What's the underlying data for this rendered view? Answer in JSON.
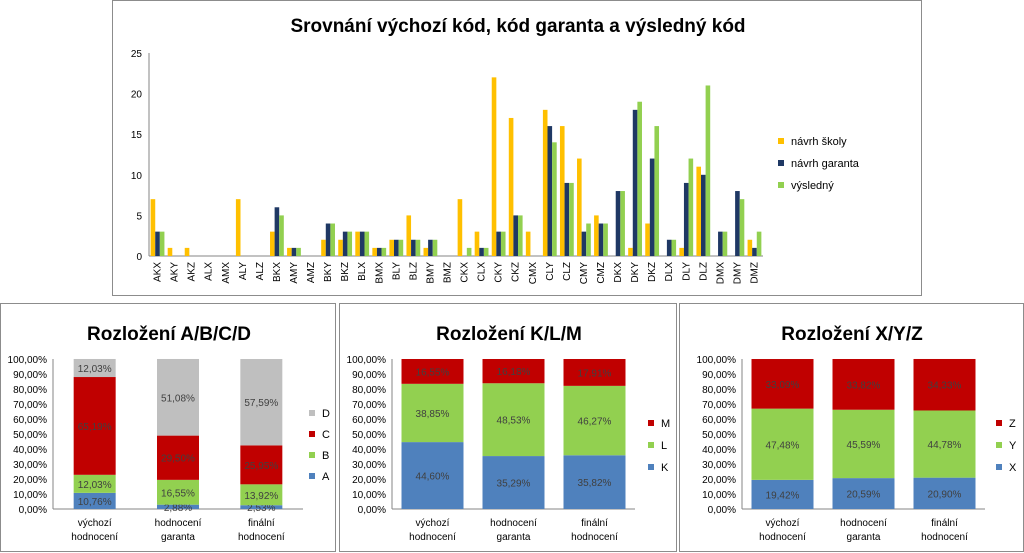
{
  "colors": {
    "navrh_skoly": "#FFC000",
    "navrh_garanta": "#1F3864",
    "vysledny": "#92D050",
    "A": "#4F81BD",
    "B": "#92D050",
    "C": "#C00000",
    "D": "#BFBFBF",
    "K": "#4F81BD",
    "L": "#92D050",
    "M": "#C00000",
    "X": "#4F81BD",
    "Y": "#92D050",
    "Z": "#C00000",
    "grid": "#d9d9d9",
    "axis": "#868686"
  },
  "chart_data": [
    {
      "type": "bar",
      "title": "Srovnání výchozí kód, kód garanta a výsledný kód",
      "xlabel": "",
      "ylabel": "",
      "ylim": [
        0,
        25
      ],
      "yticks": [
        "0",
        "5",
        "10",
        "15",
        "20",
        "25"
      ],
      "grid": false,
      "legend_position": "right",
      "categories": [
        "AKX",
        "AKY",
        "AKZ",
        "ALX",
        "AMX",
        "ALY",
        "ALZ",
        "BKX",
        "AMY",
        "AMZ",
        "BKY",
        "BKZ",
        "BLX",
        "BMX",
        "BLY",
        "BLZ",
        "BMY",
        "BMZ",
        "CKX",
        "CLX",
        "CKY",
        "CKZ",
        "CMX",
        "CLY",
        "CLZ",
        "CMY",
        "CMZ",
        "DKX",
        "DKY",
        "DKZ",
        "DLX",
        "DLY",
        "DLZ",
        "DMX",
        "DMY",
        "DMZ"
      ],
      "series": [
        {
          "name": "návrh školy",
          "color_key": "navrh_skoly",
          "values": [
            7,
            1,
            1,
            0,
            0,
            7,
            0,
            3,
            1,
            0,
            2,
            2,
            3,
            1,
            2,
            5,
            1,
            0,
            7,
            3,
            22,
            17,
            3,
            18,
            16,
            12,
            5,
            0,
            1,
            4,
            0,
            1,
            11,
            0,
            0,
            2
          ]
        },
        {
          "name": "návrh garanta",
          "color_key": "navrh_garanta",
          "values": [
            3,
            0,
            0,
            0,
            0,
            0,
            0,
            6,
            1,
            0,
            4,
            3,
            3,
            1,
            2,
            2,
            2,
            0,
            0,
            1,
            3,
            5,
            0,
            16,
            9,
            3,
            4,
            8,
            18,
            12,
            2,
            9,
            10,
            3,
            8,
            1
          ]
        },
        {
          "name": "výsledný",
          "color_key": "vysledny",
          "values": [
            3,
            0,
            0,
            0,
            0,
            0,
            0,
            5,
            1,
            0,
            4,
            3,
            3,
            1,
            2,
            2,
            2,
            0,
            1,
            1,
            3,
            5,
            0,
            14,
            9,
            4,
            4,
            8,
            19,
            16,
            2,
            12,
            21,
            3,
            7,
            3
          ]
        }
      ]
    },
    {
      "type": "bar",
      "stacked": "percent",
      "title": "Rozložení A/B/C/D",
      "xlabel": "",
      "ylabel": "",
      "ylim": [
        0,
        100
      ],
      "yticks": [
        "0,00%",
        "10,00%",
        "20,00%",
        "30,00%",
        "40,00%",
        "50,00%",
        "60,00%",
        "70,00%",
        "80,00%",
        "90,00%",
        "100,00%"
      ],
      "legend_position": "right",
      "categories": [
        [
          "výchozí",
          "hodnocení"
        ],
        [
          "hodnocení",
          "garanta"
        ],
        [
          "finální",
          "hodnocení"
        ]
      ],
      "series": [
        {
          "name": "A",
          "color_key": "A",
          "values": [
            10.76,
            2.88,
            2.53
          ],
          "labels": [
            "10,76%",
            "2,88%",
            "2,53%"
          ]
        },
        {
          "name": "B",
          "color_key": "B",
          "values": [
            12.03,
            16.55,
            13.92
          ],
          "labels": [
            "12,03%",
            "16,55%",
            "13,92%"
          ]
        },
        {
          "name": "C",
          "color_key": "C",
          "values": [
            65.19,
            29.5,
            25.95
          ],
          "labels": [
            "65,19%",
            "29,50%",
            "25,95%"
          ]
        },
        {
          "name": "D",
          "color_key": "D",
          "values": [
            12.03,
            51.08,
            57.59
          ],
          "labels": [
            "12,03%",
            "51,08%",
            "57,59%"
          ]
        }
      ]
    },
    {
      "type": "bar",
      "stacked": "percent",
      "title": "Rozložení K/L/M",
      "xlabel": "",
      "ylabel": "",
      "ylim": [
        0,
        100
      ],
      "yticks": [
        "0,00%",
        "10,00%",
        "20,00%",
        "30,00%",
        "40,00%",
        "50,00%",
        "60,00%",
        "70,00%",
        "80,00%",
        "90,00%",
        "100,00%"
      ],
      "legend_position": "right",
      "categories": [
        [
          "výchozí",
          "hodnocení"
        ],
        [
          "hodnocení",
          "garanta"
        ],
        [
          "finální",
          "hodnocení"
        ]
      ],
      "series": [
        {
          "name": "K",
          "color_key": "K",
          "values": [
            44.6,
            35.29,
            35.82
          ],
          "labels": [
            "44,60%",
            "35,29%",
            "35,82%"
          ]
        },
        {
          "name": "L",
          "color_key": "L",
          "values": [
            38.85,
            48.53,
            46.27
          ],
          "labels": [
            "38,85%",
            "48,53%",
            "46,27%"
          ]
        },
        {
          "name": "M",
          "color_key": "M",
          "values": [
            16.55,
            16.18,
            17.91
          ],
          "labels": [
            "16,55%",
            "16,18%",
            "17,91%"
          ]
        }
      ]
    },
    {
      "type": "bar",
      "stacked": "percent",
      "title": "Rozložení X/Y/Z",
      "xlabel": "",
      "ylabel": "",
      "ylim": [
        0,
        100
      ],
      "yticks": [
        "0,00%",
        "10,00%",
        "20,00%",
        "30,00%",
        "40,00%",
        "50,00%",
        "60,00%",
        "70,00%",
        "80,00%",
        "90,00%",
        "100,00%"
      ],
      "legend_position": "right",
      "categories": [
        [
          "výchozí",
          "hodnocení"
        ],
        [
          "hodnocení",
          "garanta"
        ],
        [
          "finální",
          "hodnocení"
        ]
      ],
      "series": [
        {
          "name": "X",
          "color_key": "X",
          "values": [
            19.42,
            20.59,
            20.9
          ],
          "labels": [
            "19,42%",
            "20,59%",
            "20,90%"
          ]
        },
        {
          "name": "Y",
          "color_key": "Y",
          "values": [
            47.48,
            45.59,
            44.78
          ],
          "labels": [
            "47,48%",
            "45,59%",
            "44,78%"
          ]
        },
        {
          "name": "Z",
          "color_key": "Z",
          "values": [
            33.09,
            33.82,
            34.33
          ],
          "labels": [
            "33,09%",
            "33,82%",
            "34,33%"
          ]
        }
      ]
    }
  ]
}
